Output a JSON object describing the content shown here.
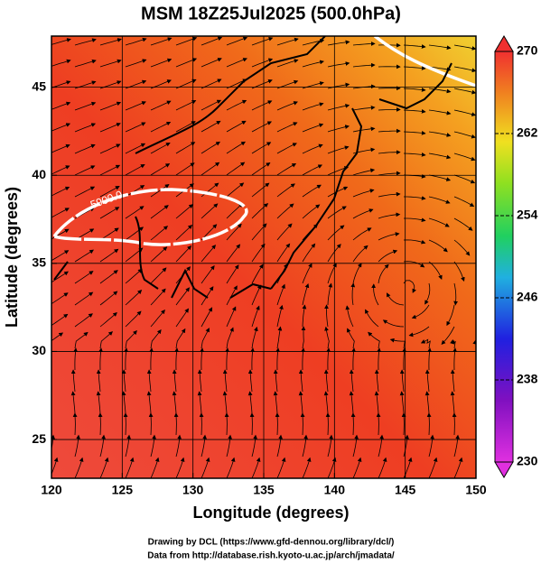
{
  "chart_data": {
    "type": "map",
    "title": "MSM 18Z25Jul2025 (500.0hPa)",
    "x_label": "Longitude (degrees)",
    "y_label": "Latitude  (degrees)",
    "xlim": [
      120,
      150
    ],
    "xticks": [
      120,
      125,
      130,
      135,
      140,
      145,
      150
    ],
    "ylim": [
      22.8,
      47.9
    ],
    "yticks": [
      25,
      30,
      35,
      40,
      45
    ],
    "grid": true,
    "colorbar": {
      "lim": [
        230,
        270
      ],
      "ticks": [
        230,
        238,
        246,
        254,
        262,
        270
      ]
    },
    "annotation": "5900.0",
    "footer": [
      "Drawing by DCL (https://www.gfd-dennou.org/library/dcl/)",
      "Data from http://database.rish.kyoto-u.ac.jp/arch/jmadata/"
    ]
  }
}
